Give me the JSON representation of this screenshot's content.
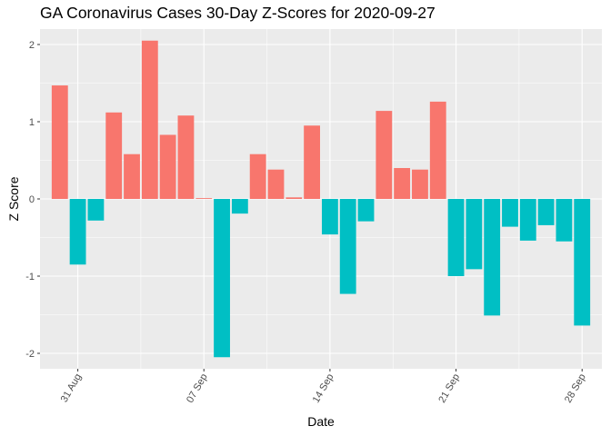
{
  "chart_data": {
    "type": "bar",
    "title": "GA Coronavirus Cases 30-Day Z-Scores for 2020-09-27",
    "xlabel": "Date",
    "ylabel": "Z Score",
    "ylim": [
      -2.2,
      2.2
    ],
    "y_ticks": [
      -2,
      -1,
      0,
      1,
      2
    ],
    "x_ticks": [
      {
        "label": "31 Aug",
        "day": 3
      },
      {
        "label": "07 Sep",
        "day": 10
      },
      {
        "label": "14 Sep",
        "day": 17
      },
      {
        "label": "21 Sep",
        "day": 24
      },
      {
        "label": "28 Sep",
        "day": 31
      }
    ],
    "x_range_days": [
      0.9,
      32.1
    ],
    "grid": true,
    "colors": {
      "positive": "#F8766D",
      "negative": "#00BFC4",
      "panel": "#EBEBEB",
      "grid": "#FFFFFF"
    },
    "days": [
      2,
      3,
      4,
      5,
      6,
      7,
      8,
      9,
      10,
      11,
      12,
      13,
      14,
      15,
      16,
      17,
      18,
      19,
      20,
      21,
      22,
      23,
      24,
      25,
      26,
      27,
      28,
      29,
      30,
      31
    ],
    "values": [
      1.47,
      -0.85,
      -0.28,
      1.12,
      0.58,
      2.05,
      0.83,
      1.08,
      0.01,
      -2.05,
      -0.19,
      0.58,
      0.38,
      0.02,
      0.95,
      -0.46,
      -1.23,
      -0.29,
      1.14,
      0.4,
      0.38,
      1.26,
      -1.0,
      -0.91,
      -1.51,
      -0.36,
      -0.54,
      -0.34,
      -0.55,
      -1.64
    ]
  }
}
